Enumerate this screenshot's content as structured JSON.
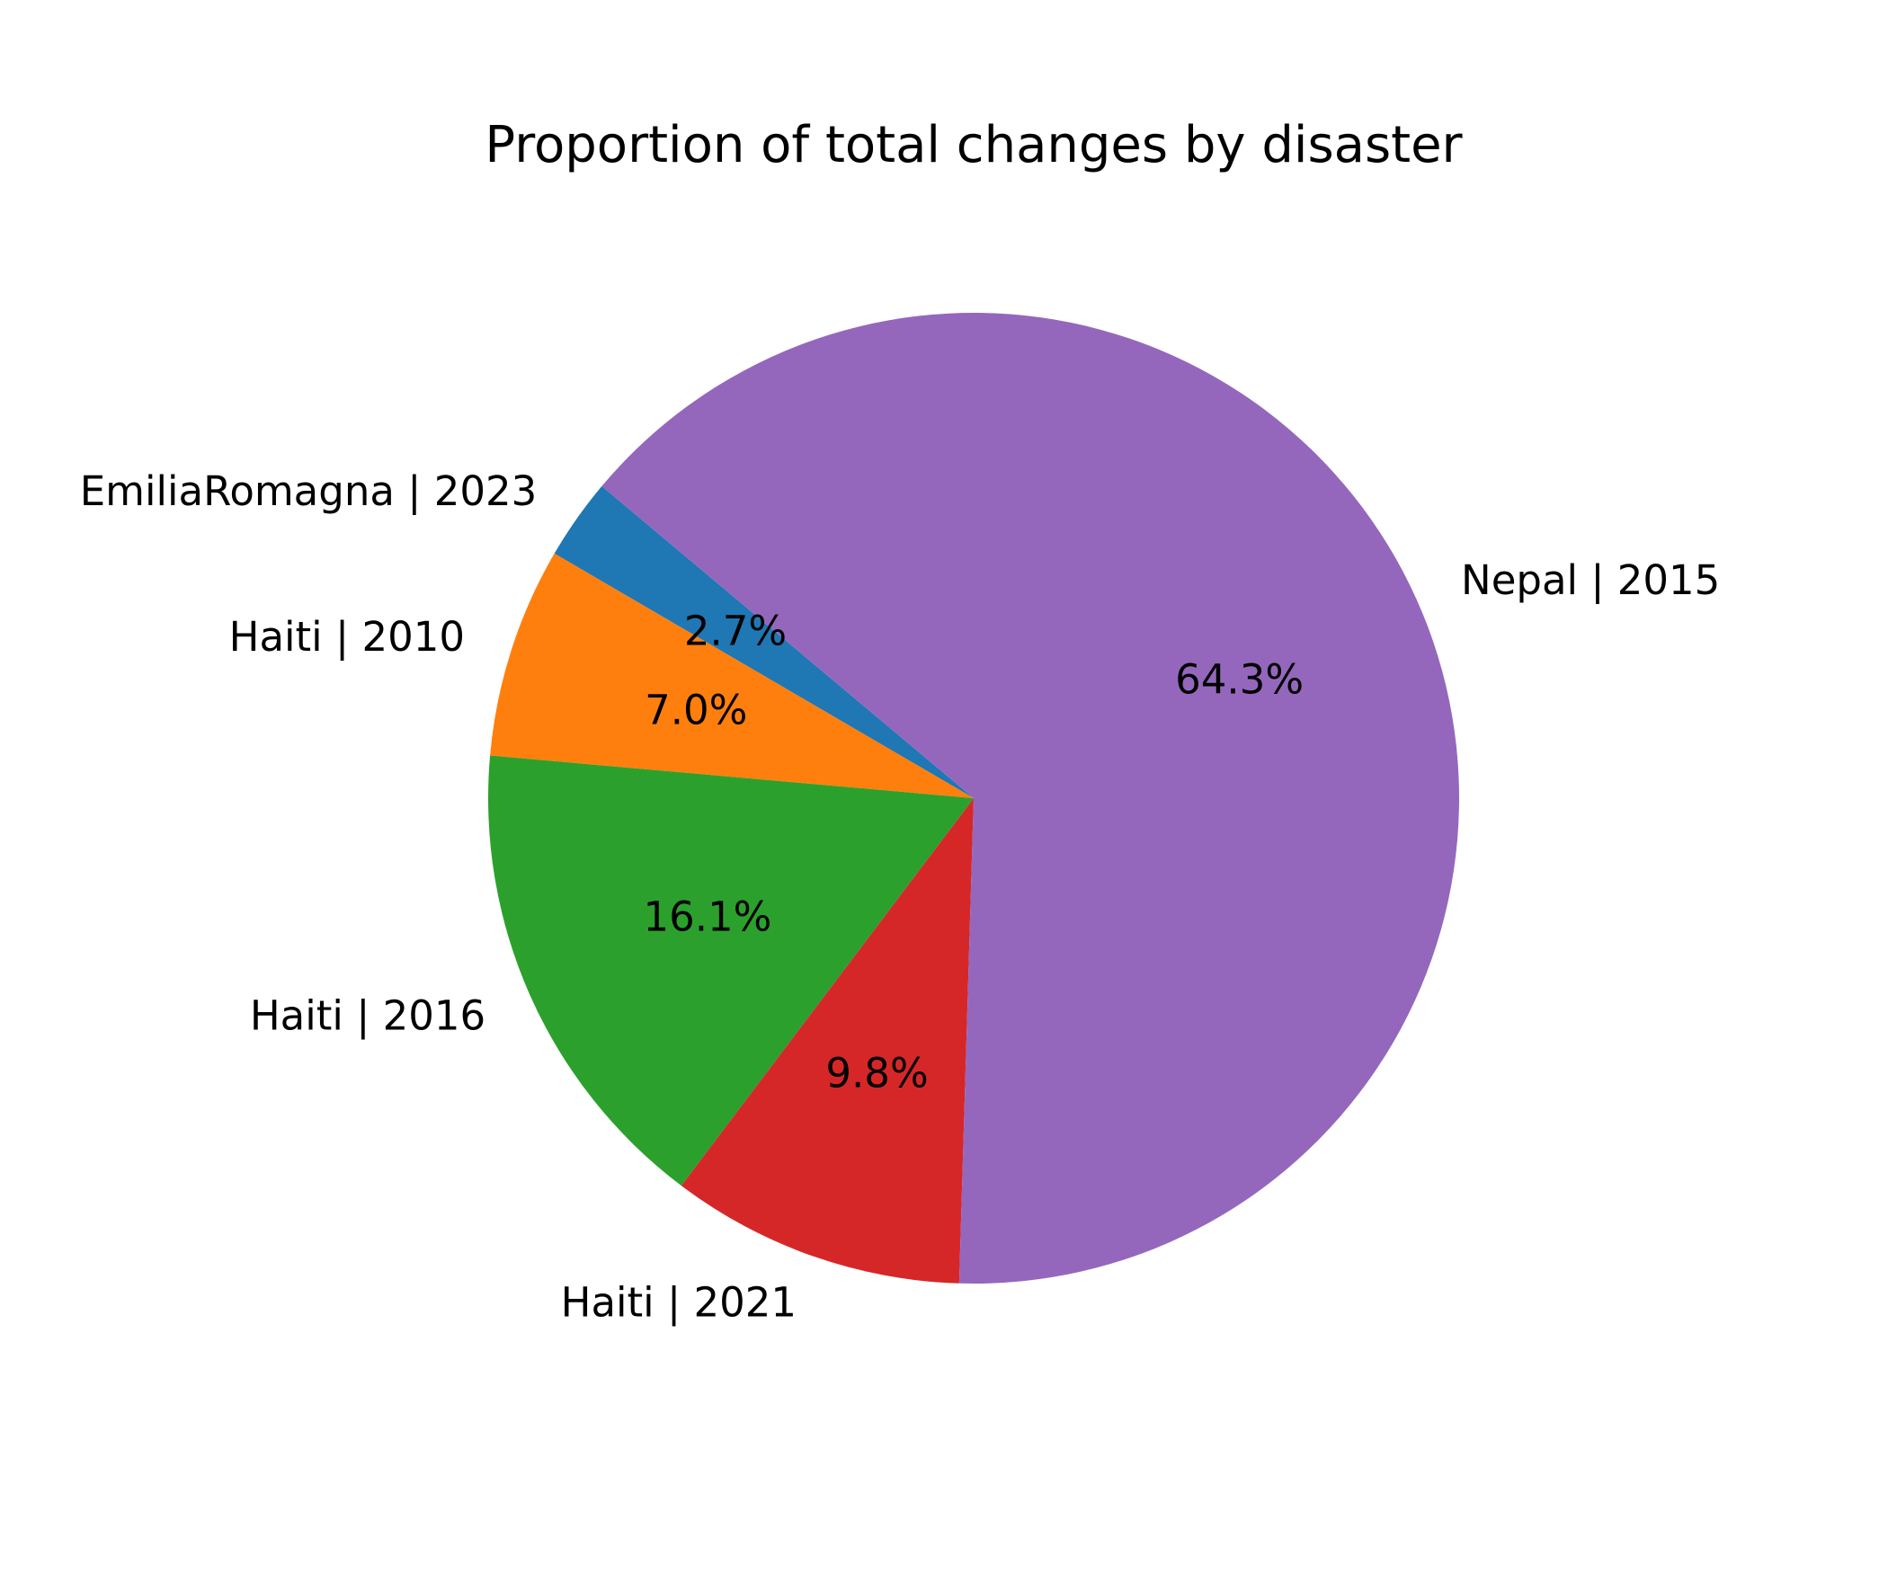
{
  "chart_data": {
    "type": "pie",
    "title": "Proportion of total changes by disaster",
    "start_angle_deg": 140,
    "direction": "counterclockwise",
    "slices": [
      {
        "label": "EmiliaRomagna | 2023",
        "value": 2.7,
        "pct_label": "2.7%",
        "color": "#1f77b4"
      },
      {
        "label": "Haiti | 2010",
        "value": 7.0,
        "pct_label": "7.0%",
        "color": "#ff7f0e"
      },
      {
        "label": "Haiti | 2016",
        "value": 16.1,
        "pct_label": "16.1%",
        "color": "#2ca02c"
      },
      {
        "label": "Haiti | 2021",
        "value": 9.8,
        "pct_label": "9.8%",
        "color": "#d62728"
      },
      {
        "label": "Nepal | 2015",
        "value": 64.3,
        "pct_label": "64.3%",
        "color": "#9467bd"
      }
    ]
  }
}
